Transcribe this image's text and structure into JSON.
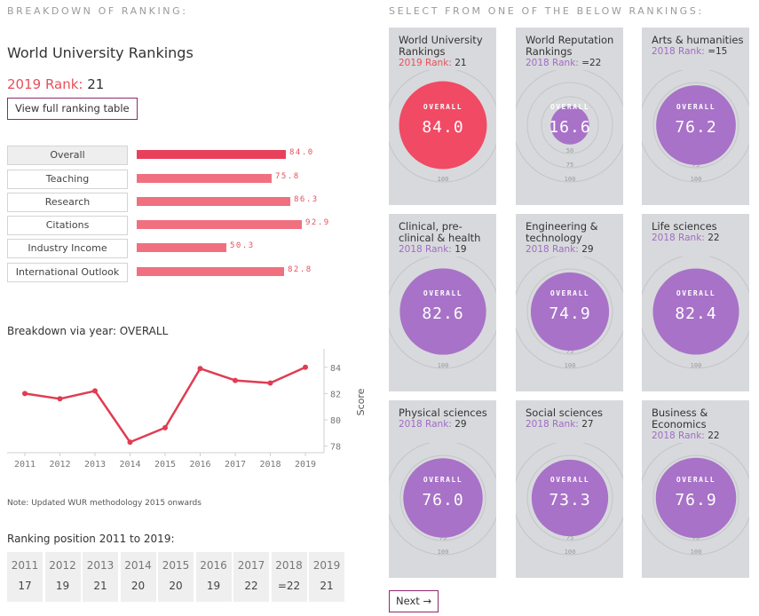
{
  "headings": {
    "breakdown": "BREAKDOWN OF RANKING:",
    "select": "SELECT FROM ONE OF THE BELOW RANKINGS:"
  },
  "university": {
    "title": "World University Rankings",
    "rank_label": "2019 Rank:",
    "rank_value": "21",
    "view_table_label": "View full ranking table"
  },
  "metrics": [
    {
      "label": "Overall",
      "value": 84.0,
      "display": "84.0",
      "active": true
    },
    {
      "label": "Teaching",
      "value": 75.8,
      "display": "75.8",
      "active": false
    },
    {
      "label": "Research",
      "value": 86.3,
      "display": "86.3",
      "active": false
    },
    {
      "label": "Citations",
      "value": 92.9,
      "display": "92.9",
      "active": false
    },
    {
      "label": "Industry Income",
      "value": 50.3,
      "display": "50.3",
      "active": false
    },
    {
      "label": "International Outlook",
      "value": 82.8,
      "display": "82.8",
      "active": false
    }
  ],
  "chart_title": "Breakdown via year: OVERALL",
  "chart_data": {
    "type": "line",
    "title": "Breakdown via year: OVERALL",
    "x": [
      "2011",
      "2012",
      "2013",
      "2014",
      "2015",
      "2016",
      "2017",
      "2018",
      "2019"
    ],
    "values": [
      82.0,
      81.6,
      82.2,
      78.3,
      79.4,
      83.9,
      83.0,
      82.8,
      84.0
    ],
    "yticks": [
      78,
      80,
      82,
      84
    ],
    "ylim": [
      77.5,
      85.2
    ],
    "ylabel": "Score",
    "xlabel": "",
    "color": "#e03c52"
  },
  "note": "Note: Updated WUR methodology 2015 onwards",
  "positions_title": "Ranking position 2011 to 2019:",
  "positions": [
    {
      "year": "2011",
      "rank": "17"
    },
    {
      "year": "2012",
      "rank": "19"
    },
    {
      "year": "2013",
      "rank": "21"
    },
    {
      "year": "2014",
      "rank": "20"
    },
    {
      "year": "2015",
      "rank": "20"
    },
    {
      "year": "2016",
      "rank": "19"
    },
    {
      "year": "2017",
      "rank": "22"
    },
    {
      "year": "2018",
      "rank": "=22"
    },
    {
      "year": "2019",
      "rank": "21"
    }
  ],
  "gauge_labels": {
    "overall": "OVERALL",
    "ring_ticks": [
      "25",
      "50",
      "75",
      "100"
    ]
  },
  "cards": [
    {
      "title": "World University Rankings",
      "rank_label": "2019 Rank:",
      "rank": "21",
      "score": 84.0,
      "display": "84.0",
      "color": "#f04a64",
      "highlight": true
    },
    {
      "title": "World Reputation Rankings",
      "rank_label": "2018 Rank:",
      "rank": "=22",
      "score": 16.6,
      "display": "16.6",
      "color": "#a872c8",
      "highlight": false
    },
    {
      "title": "Arts & humanities",
      "rank_label": "2018 Rank:",
      "rank": "=15",
      "score": 76.2,
      "display": "76.2",
      "color": "#a872c8",
      "highlight": false
    },
    {
      "title": "Clinical, pre-clinical & health",
      "rank_label": "2018 Rank:",
      "rank": "19",
      "score": 82.6,
      "display": "82.6",
      "color": "#a872c8",
      "highlight": false
    },
    {
      "title": "Engineering & technology",
      "rank_label": "2018 Rank:",
      "rank": "29",
      "score": 74.9,
      "display": "74.9",
      "color": "#a872c8",
      "highlight": false
    },
    {
      "title": "Life sciences",
      "rank_label": "2018 Rank:",
      "rank": "22",
      "score": 82.4,
      "display": "82.4",
      "color": "#a872c8",
      "highlight": false
    },
    {
      "title": "Physical sciences",
      "rank_label": "2018 Rank:",
      "rank": "29",
      "score": 76.0,
      "display": "76.0",
      "color": "#a872c8",
      "highlight": false
    },
    {
      "title": "Social sciences",
      "rank_label": "2018 Rank:",
      "rank": "27",
      "score": 73.3,
      "display": "73.3",
      "color": "#a872c8",
      "highlight": false
    },
    {
      "title": "Business & Economics",
      "rank_label": "2018 Rank:",
      "rank": "22",
      "score": 76.9,
      "display": "76.9",
      "color": "#a872c8",
      "highlight": false
    }
  ],
  "next_label": "Next →"
}
